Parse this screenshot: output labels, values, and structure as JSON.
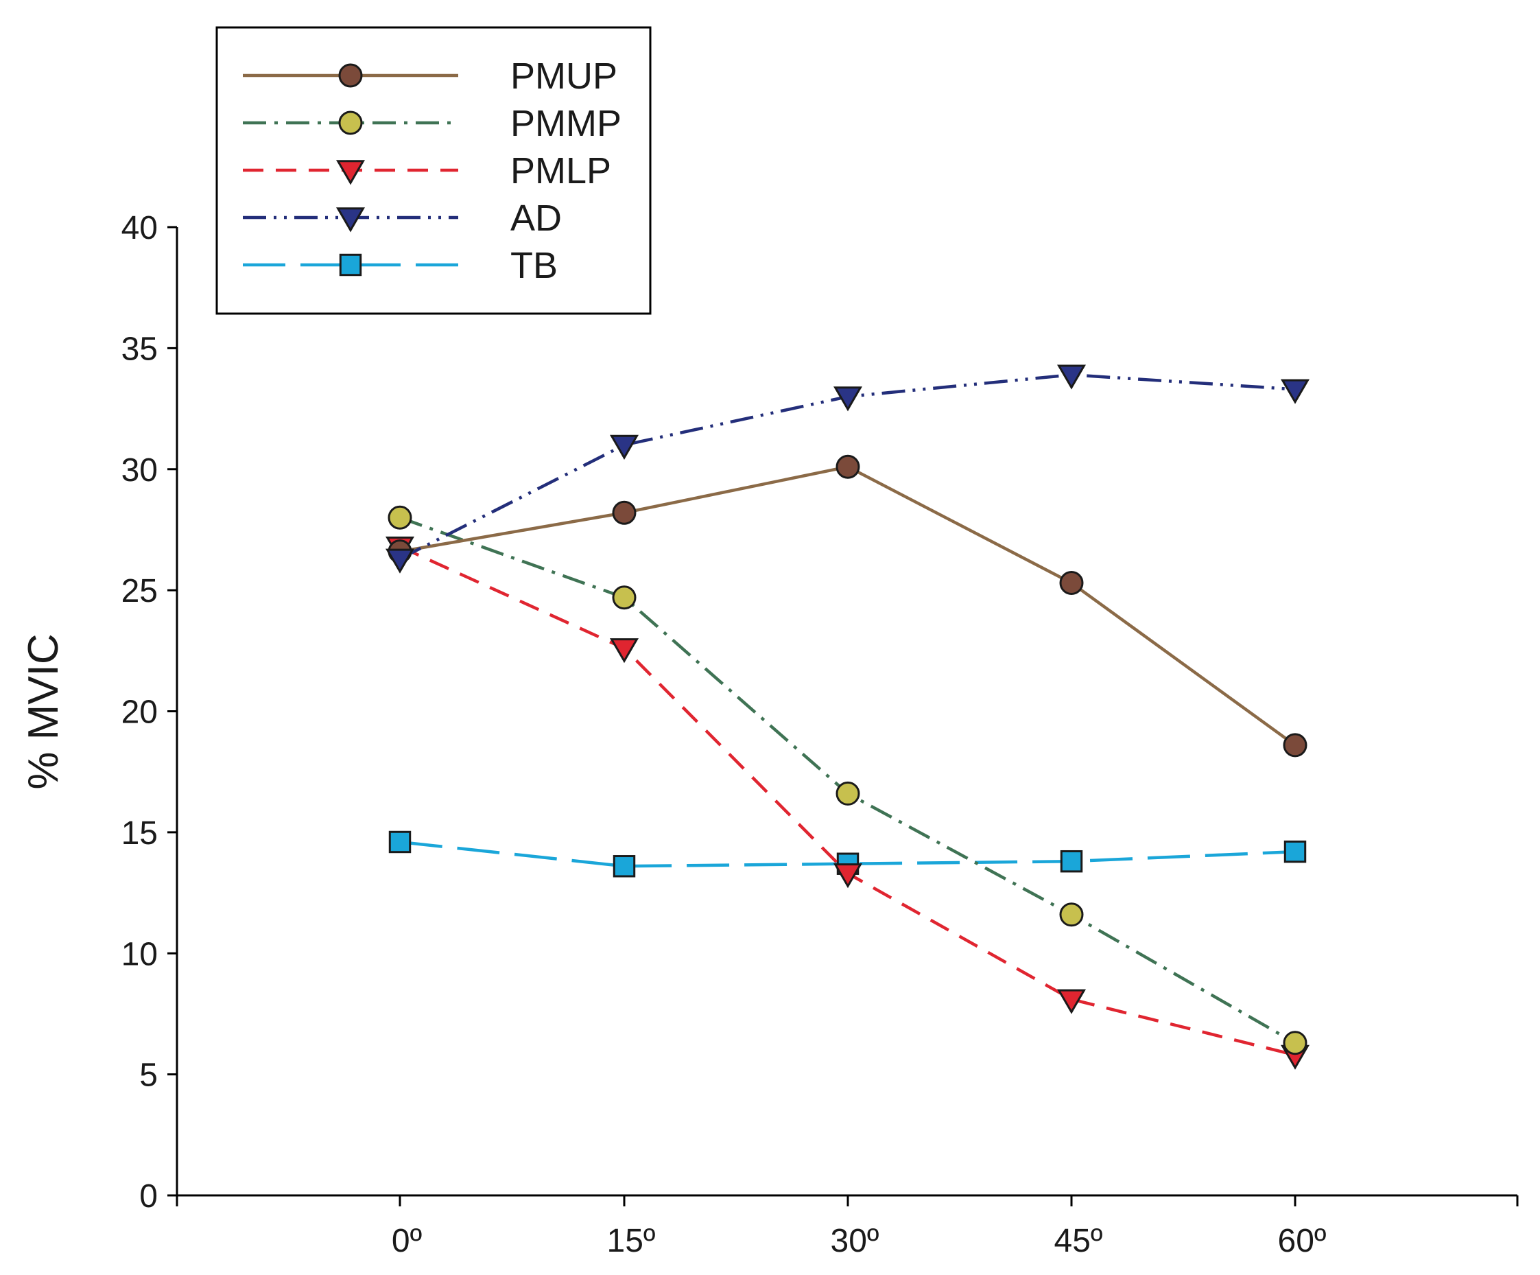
{
  "chart_data": {
    "type": "line",
    "title": "",
    "xlabel": "",
    "ylabel": "% MVIC",
    "categories": [
      "0º",
      "15º",
      "30º",
      "45º",
      "60º"
    ],
    "ylim": [
      0,
      40
    ],
    "yticks": [
      0,
      5,
      10,
      15,
      20,
      25,
      30,
      35,
      40
    ],
    "grid": false,
    "legend_position": "top-left",
    "series": [
      {
        "name": "PMUP",
        "values": [
          26.6,
          28.2,
          30.1,
          25.3,
          18.6
        ],
        "color": "#8B6A47",
        "marker": "circle",
        "marker_fill": "#7B4A3A",
        "dash": "solid"
      },
      {
        "name": "PMMP",
        "values": [
          28.0,
          24.7,
          16.6,
          11.6,
          6.3
        ],
        "color": "#3F7354",
        "marker": "circle",
        "marker_fill": "#C7C04E",
        "dash": "dashdot"
      },
      {
        "name": "PMLP",
        "values": [
          26.8,
          22.6,
          13.3,
          8.1,
          5.8
        ],
        "color": "#E02530",
        "marker": "triangle-down",
        "marker_fill": "#E02530",
        "dash": "dash"
      },
      {
        "name": "AD",
        "values": [
          26.3,
          31.0,
          33.0,
          33.9,
          33.3
        ],
        "color": "#232E7A",
        "marker": "triangle-down",
        "marker_fill": "#2A3486",
        "dash": "dashdotdot"
      },
      {
        "name": "TB",
        "values": [
          14.6,
          13.6,
          13.7,
          13.8,
          14.2
        ],
        "color": "#1AA6D9",
        "marker": "square",
        "marker_fill": "#1AA6D9",
        "dash": "longdash"
      }
    ]
  }
}
